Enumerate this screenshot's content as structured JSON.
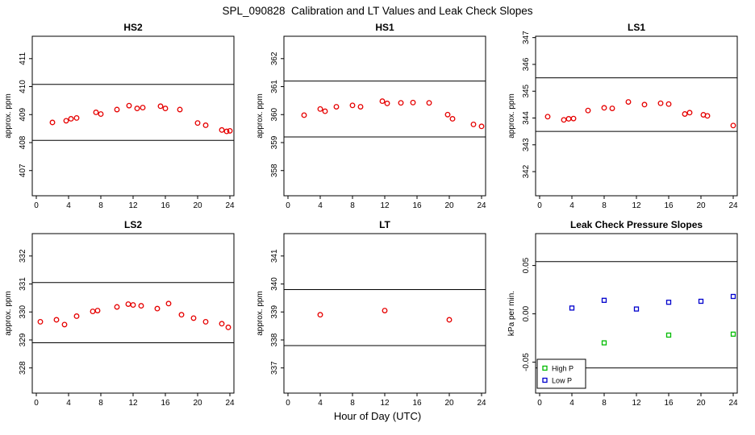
{
  "page": {
    "title": "SPL_090828  Calibration and LT Values and Leak Check Slopes",
    "xlabel": "Hour of Day (UTC)"
  },
  "colors": {
    "calibration_points": "#e60000",
    "high_p": "#00bb00",
    "low_p": "#0000cc",
    "axis": "#000000"
  },
  "chart_data": [
    {
      "type": "scatter",
      "title": "HS2",
      "ylabel": "approx. ppm",
      "xlim": [
        -0.5,
        24.5
      ],
      "xticks": [
        0,
        4,
        8,
        12,
        16,
        20,
        24
      ],
      "ylim": [
        406.1,
        411.8
      ],
      "yticks": [
        407,
        408,
        409,
        410,
        411
      ],
      "hlines": [
        410.08,
        408.08
      ],
      "series": [
        {
          "name": "calibration",
          "marker": "circle",
          "color": "#e60000",
          "points": [
            [
              2,
              408.72
            ],
            [
              3.7,
              408.78
            ],
            [
              4.3,
              408.85
            ],
            [
              5,
              408.88
            ],
            [
              7.4,
              409.08
            ],
            [
              8,
              409.02
            ],
            [
              10,
              409.18
            ],
            [
              11.5,
              409.32
            ],
            [
              12.5,
              409.22
            ],
            [
              13.2,
              409.25
            ],
            [
              15.4,
              409.3
            ],
            [
              16,
              409.22
            ],
            [
              17.8,
              409.18
            ],
            [
              20,
              408.7
            ],
            [
              21,
              408.62
            ],
            [
              23,
              408.45
            ],
            [
              23.6,
              408.4
            ],
            [
              24,
              408.42
            ]
          ]
        }
      ]
    },
    {
      "type": "scatter",
      "title": "HS1",
      "ylabel": "approx. ppm",
      "xlim": [
        -0.5,
        24.5
      ],
      "xticks": [
        0,
        4,
        8,
        12,
        16,
        20,
        24
      ],
      "ylim": [
        357.1,
        362.8
      ],
      "yticks": [
        358,
        359,
        360,
        361,
        362
      ],
      "hlines": [
        361.2,
        359.2
      ],
      "series": [
        {
          "name": "calibration",
          "marker": "circle",
          "color": "#e60000",
          "points": [
            [
              2,
              359.98
            ],
            [
              4,
              360.2
            ],
            [
              4.6,
              360.12
            ],
            [
              6,
              360.28
            ],
            [
              8,
              360.33
            ],
            [
              9,
              360.28
            ],
            [
              11.7,
              360.48
            ],
            [
              12.3,
              360.4
            ],
            [
              14,
              360.42
            ],
            [
              15.5,
              360.43
            ],
            [
              17.5,
              360.42
            ],
            [
              19.8,
              360.0
            ],
            [
              20.4,
              359.85
            ],
            [
              23,
              359.65
            ],
            [
              24,
              359.58
            ]
          ]
        }
      ]
    },
    {
      "type": "scatter",
      "title": "LS1",
      "ylabel": "approx. ppm",
      "xlim": [
        -0.5,
        24.5
      ],
      "xticks": [
        0,
        4,
        8,
        12,
        16,
        20,
        24
      ],
      "ylim": [
        341.1,
        347.05
      ],
      "yticks": [
        342,
        343,
        344,
        345,
        346,
        347
      ],
      "hlines": [
        345.5,
        343.5
      ],
      "series": [
        {
          "name": "calibration",
          "marker": "circle",
          "color": "#e60000",
          "points": [
            [
              1,
              344.05
            ],
            [
              3,
              343.93
            ],
            [
              3.6,
              343.97
            ],
            [
              4.2,
              343.98
            ],
            [
              6,
              344.28
            ],
            [
              8,
              344.38
            ],
            [
              9,
              344.36
            ],
            [
              11,
              344.6
            ],
            [
              13,
              344.5
            ],
            [
              15,
              344.55
            ],
            [
              16,
              344.52
            ],
            [
              18,
              344.15
            ],
            [
              18.6,
              344.2
            ],
            [
              20.3,
              344.12
            ],
            [
              20.8,
              344.08
            ],
            [
              24,
              343.72
            ]
          ]
        }
      ]
    },
    {
      "type": "scatter",
      "title": "LS2",
      "ylabel": "approx. ppm",
      "xlim": [
        -0.5,
        24.5
      ],
      "xticks": [
        0,
        4,
        8,
        12,
        16,
        20,
        24
      ],
      "ylim": [
        327.1,
        332.8
      ],
      "yticks": [
        328,
        329,
        330,
        331,
        332
      ],
      "hlines": [
        331.05,
        328.9
      ],
      "series": [
        {
          "name": "calibration",
          "marker": "circle",
          "color": "#e60000",
          "points": [
            [
              0.5,
              329.65
            ],
            [
              2.5,
              329.72
            ],
            [
              3.5,
              329.55
            ],
            [
              5,
              329.85
            ],
            [
              7,
              330.02
            ],
            [
              7.6,
              330.05
            ],
            [
              10,
              330.18
            ],
            [
              11.4,
              330.28
            ],
            [
              12,
              330.25
            ],
            [
              13,
              330.22
            ],
            [
              15,
              330.12
            ],
            [
              16.4,
              330.3
            ],
            [
              18,
              329.9
            ],
            [
              19.5,
              329.78
            ],
            [
              21,
              329.65
            ],
            [
              23,
              329.58
            ],
            [
              23.8,
              329.45
            ]
          ]
        }
      ]
    },
    {
      "type": "scatter",
      "title": "LT",
      "ylabel": "approx. ppm",
      "xlim": [
        -0.5,
        24.5
      ],
      "xticks": [
        0,
        4,
        8,
        12,
        16,
        20,
        24
      ],
      "ylim": [
        336.1,
        341.8
      ],
      "yticks": [
        337,
        338,
        339,
        340,
        341
      ],
      "hlines": [
        339.8,
        337.8
      ],
      "series": [
        {
          "name": "LT",
          "marker": "circle",
          "color": "#e60000",
          "points": [
            [
              4,
              338.9
            ],
            [
              12,
              339.05
            ],
            [
              20,
              338.72
            ]
          ]
        }
      ]
    },
    {
      "type": "scatter",
      "title": "Leak Check Pressure Slopes",
      "ylabel": "kPa per min.",
      "xlim": [
        -0.5,
        24.5
      ],
      "xticks": [
        0,
        4,
        8,
        12,
        16,
        20,
        24
      ],
      "ylim": [
        -0.082,
        0.083
      ],
      "yticks": [
        -0.05,
        0,
        0.05
      ],
      "yticklabels": [
        "-0.05",
        "0.00",
        "0.05"
      ],
      "hlines": [
        0.054,
        -0.056
      ],
      "series": [
        {
          "name": "High P",
          "marker": "square",
          "color": "#00bb00",
          "points": [
            [
              8,
              -0.03
            ],
            [
              16,
              -0.022
            ],
            [
              24,
              -0.021
            ]
          ]
        },
        {
          "name": "Low P",
          "marker": "square",
          "color": "#0000cc",
          "points": [
            [
              4,
              0.006
            ],
            [
              8,
              0.014
            ],
            [
              12,
              0.005
            ],
            [
              16,
              0.012
            ],
            [
              20,
              0.013
            ],
            [
              24,
              0.018
            ]
          ]
        }
      ],
      "legend": {
        "entries": [
          {
            "label": "High P",
            "color": "#00bb00",
            "marker": "square"
          },
          {
            "label": "Low P",
            "color": "#0000cc",
            "marker": "square"
          }
        ]
      }
    }
  ]
}
